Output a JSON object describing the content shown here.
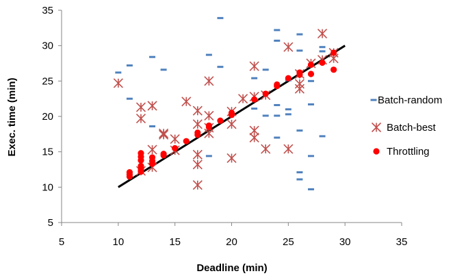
{
  "chart_data": {
    "type": "scatter",
    "title": "",
    "xlabel": "Deadline (min)",
    "ylabel": "Exec. time (min)",
    "xlim": [
      5,
      35
    ],
    "ylim": [
      5,
      35
    ],
    "xticks": [
      5,
      10,
      15,
      20,
      25,
      30,
      35
    ],
    "yticks": [
      5,
      10,
      15,
      20,
      25,
      30,
      35
    ],
    "grid": false,
    "legend_position": "right",
    "reference_line": {
      "x": [
        10,
        30
      ],
      "y": [
        10,
        30
      ],
      "color": "#000000"
    },
    "series": [
      {
        "name": "Batch-random",
        "marker": "dash",
        "color": "#4f81bd",
        "x": [
          10,
          11,
          11,
          13,
          13,
          14,
          18,
          18,
          19,
          19,
          22,
          22,
          23,
          23,
          24,
          24,
          24,
          24,
          24,
          25,
          25,
          25,
          26,
          26,
          26,
          26,
          26,
          27,
          27,
          27,
          27,
          28,
          28,
          28
        ],
        "y": [
          26.2,
          27.2,
          22.5,
          28.4,
          18.6,
          26.6,
          28.7,
          14.4,
          33.9,
          27.0,
          25.4,
          21.1,
          26.6,
          20.1,
          32.2,
          30.7,
          21.6,
          20.1,
          17.0,
          25.1,
          21.0,
          20.3,
          31.6,
          29.3,
          18.0,
          12.1,
          11.1,
          21.7,
          25.0,
          14.4,
          9.7,
          29.8,
          29.2,
          17.2
        ]
      },
      {
        "name": "Batch-best",
        "marker": "asterisk",
        "color": "#c0504d",
        "x": [
          10,
          12,
          12,
          12,
          13,
          13,
          13,
          14,
          14,
          15,
          15,
          16,
          17,
          17,
          17,
          17,
          17,
          18,
          18,
          18,
          18,
          20,
          20,
          20,
          21,
          22,
          22,
          22,
          22,
          23,
          23,
          25,
          25,
          26,
          26,
          26,
          27,
          28,
          28,
          29,
          29
        ],
        "y": [
          24.7,
          21.3,
          19.7,
          12.3,
          21.5,
          15.3,
          12.8,
          17.6,
          17.4,
          16.8,
          15.2,
          22.1,
          20.8,
          14.6,
          13.2,
          10.3,
          18.9,
          25.0,
          20.1,
          18.4,
          17.6,
          18.9,
          14.1,
          20.7,
          22.5,
          27.1,
          18.0,
          17.0,
          22.8,
          23.0,
          15.4,
          29.8,
          15.4,
          26.0,
          24.6,
          23.9,
          27.5,
          31.7,
          28.0,
          29.0,
          28.2
        ]
      },
      {
        "name": "Throttling",
        "marker": "circle",
        "color": "#ff0000",
        "x": [
          11,
          11,
          11,
          12,
          12,
          12,
          12,
          12,
          12,
          12,
          13,
          13,
          13,
          14,
          14,
          15,
          16,
          17,
          17,
          18,
          18,
          19,
          20,
          20,
          22,
          23,
          24,
          24,
          25,
          26,
          26,
          27,
          27,
          28,
          29,
          29
        ],
        "y": [
          12.1,
          11.8,
          11.5,
          14.8,
          14.3,
          13.8,
          13.0,
          12.7,
          12.4,
          12.2,
          14.2,
          13.7,
          13.3,
          14.7,
          14.5,
          15.5,
          16.5,
          17.7,
          17.4,
          18.7,
          18.5,
          19.4,
          20.5,
          20.2,
          22.4,
          23.2,
          24.5,
          24.3,
          25.4,
          26.2,
          25.9,
          27.3,
          26.0,
          27.6,
          29.0,
          26.6
        ]
      }
    ]
  }
}
